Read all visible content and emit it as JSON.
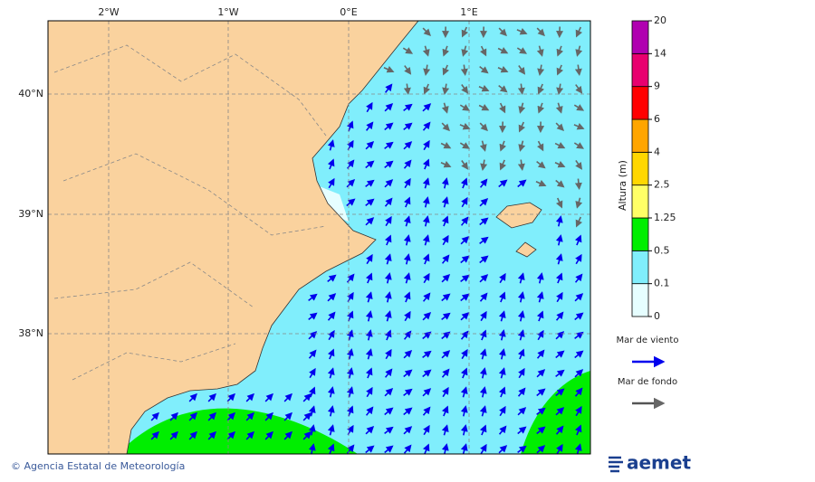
{
  "map": {
    "lon_ticks": [
      "2°W",
      "1°W",
      "0°E",
      "1°E"
    ],
    "lat_ticks": [
      "40°N",
      "39°N",
      "38°N"
    ],
    "colorbar": {
      "title": "Altura (m)",
      "levels": [
        0,
        0.1,
        0.5,
        1.25,
        2.5,
        4,
        6,
        9,
        14,
        20
      ],
      "colors": [
        "#e6feff",
        "#80eefc",
        "#00ee00",
        "#ffff66",
        "#ffd700",
        "#ffa500",
        "#ff0000",
        "#e8006f",
        "#b000b0"
      ]
    }
  },
  "legend": [
    {
      "label": "Mar de viento",
      "color": "#0000ee"
    },
    {
      "label": "Mar de fondo",
      "color": "#555555"
    }
  ],
  "footer": {
    "credit": "© Agencia Estatal de Meteorología",
    "logo": "aemet"
  }
}
